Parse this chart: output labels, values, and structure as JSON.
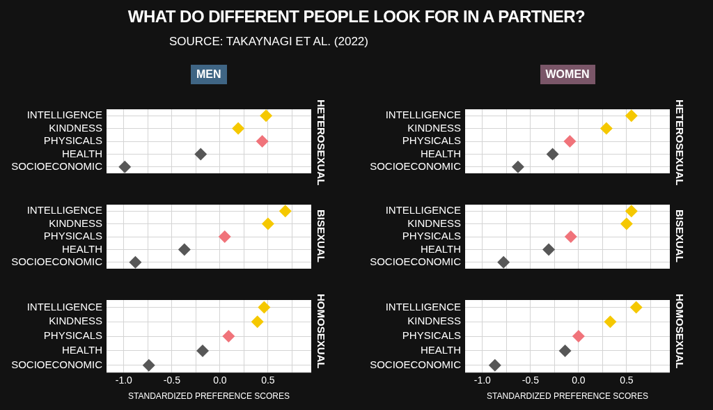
{
  "chart_data": [
    {
      "type": "scatter",
      "orientation": "horizontal",
      "title": "WHAT DO DIFFERENT PEOPLE LOOK FOR IN A PARTNER?",
      "subtitle": "SOURCE: TAKAYNAGI ET AL. (2022)",
      "annotations": [
        "MEN"
      ],
      "y2label": "HETEROSEXUAL",
      "categories": [
        "INTELLIGENCE",
        "KINDNESS",
        "PHYSICALS",
        "HEALTH",
        "SOCIOECONOMIC"
      ],
      "values": [
        0.48,
        0.19,
        0.44,
        -0.2,
        -0.99
      ],
      "colors": [
        "#f5c800",
        "#f5c800",
        "#f0737a",
        "#575757",
        "#575757"
      ],
      "marker": "diamond",
      "grid": true,
      "tick_labels": "y",
      "xlim": [
        -1.18,
        0.95
      ],
      "xticks": [
        {
          "value": -1,
          "label": null
        },
        {
          "value": -0.75,
          "label": null
        },
        {
          "value": -0.5,
          "label": null
        },
        {
          "value": -0.25,
          "label": null
        },
        {
          "value": 0,
          "label": null
        },
        {
          "value": 0.25,
          "label": null
        },
        {
          "value": 0.5,
          "label": null
        },
        {
          "value": 0.75,
          "label": null
        }
      ]
    },
    {
      "type": "scatter",
      "orientation": "horizontal",
      "annotations": [
        "WOMEN"
      ],
      "y2label": "HETEROSEXUAL",
      "categories": [
        "INTELLIGENCE",
        "KINDNESS",
        "PHYSICALS",
        "HEALTH",
        "SOCIOECONOMIC"
      ],
      "values": [
        0.55,
        0.29,
        -0.09,
        -0.27,
        -0.63
      ],
      "colors": [
        "#f5c800",
        "#f5c800",
        "#f0737a",
        "#575757",
        "#575757"
      ],
      "marker": "diamond",
      "grid": true,
      "tick_labels": "y",
      "xlim": [
        -1.18,
        0.95
      ],
      "xticks": [
        {
          "value": -1,
          "label": null
        },
        {
          "value": -0.75,
          "label": null
        },
        {
          "value": -0.5,
          "label": null
        },
        {
          "value": -0.25,
          "label": null
        },
        {
          "value": 0,
          "label": null
        },
        {
          "value": 0.25,
          "label": null
        },
        {
          "value": 0.5,
          "label": null
        },
        {
          "value": 0.75,
          "label": null
        }
      ]
    },
    {
      "type": "scatter",
      "orientation": "horizontal",
      "y2label": "BISEXUAL",
      "categories": [
        "INTELLIGENCE",
        "KINDNESS",
        "PHYSICALS",
        "HEALTH",
        "SOCIOECONOMIC"
      ],
      "values": [
        0.68,
        0.5,
        0.05,
        -0.37,
        -0.88
      ],
      "colors": [
        "#f5c800",
        "#f5c800",
        "#f0737a",
        "#575757",
        "#575757"
      ],
      "marker": "diamond",
      "grid": true,
      "tick_labels": "y",
      "xlim": [
        -1.18,
        0.95
      ],
      "xticks": [
        {
          "value": -1,
          "label": null
        },
        {
          "value": -0.75,
          "label": null
        },
        {
          "value": -0.5,
          "label": null
        },
        {
          "value": -0.25,
          "label": null
        },
        {
          "value": 0,
          "label": null
        },
        {
          "value": 0.25,
          "label": null
        },
        {
          "value": 0.5,
          "label": null
        },
        {
          "value": 0.75,
          "label": null
        }
      ]
    },
    {
      "type": "scatter",
      "orientation": "horizontal",
      "y2label": "BISEXUAL",
      "categories": [
        "INTELLIGENCE",
        "KINDNESS",
        "PHYSICALS",
        "HEALTH",
        "SOCIOECONOMIC"
      ],
      "values": [
        0.55,
        0.5,
        -0.08,
        -0.31,
        -0.78
      ],
      "colors": [
        "#f5c800",
        "#f5c800",
        "#f0737a",
        "#575757",
        "#575757"
      ],
      "marker": "diamond",
      "grid": true,
      "tick_labels": "y",
      "xlim": [
        -1.18,
        0.95
      ],
      "xticks": [
        {
          "value": -1,
          "label": null
        },
        {
          "value": -0.75,
          "label": null
        },
        {
          "value": -0.5,
          "label": null
        },
        {
          "value": -0.25,
          "label": null
        },
        {
          "value": 0,
          "label": null
        },
        {
          "value": 0.25,
          "label": null
        },
        {
          "value": 0.5,
          "label": null
        },
        {
          "value": 0.75,
          "label": null
        }
      ]
    },
    {
      "type": "scatter",
      "orientation": "horizontal",
      "y2label": "HOMOSEXUAL",
      "xlabel": "STANDARDIZED PREFERENCE SCORES",
      "categories": [
        "INTELLIGENCE",
        "KINDNESS",
        "PHYSICALS",
        "HEALTH",
        "SOCIOECONOMIC"
      ],
      "values": [
        0.46,
        0.39,
        0.09,
        -0.18,
        -0.74
      ],
      "colors": [
        "#f5c800",
        "#f5c800",
        "#f0737a",
        "#575757",
        "#575757"
      ],
      "marker": "diamond",
      "grid": true,
      "xlim": [
        -1.18,
        0.95
      ],
      "xticks": [
        {
          "value": -1,
          "label": "-1.0"
        },
        {
          "value": -0.75,
          "label": null
        },
        {
          "value": -0.5,
          "label": "-0.5"
        },
        {
          "value": -0.25,
          "label": null
        },
        {
          "value": 0,
          "label": "0.0"
        },
        {
          "value": 0.25,
          "label": null
        },
        {
          "value": 0.5,
          "label": "0.5"
        },
        {
          "value": 0.75,
          "label": null
        }
      ]
    },
    {
      "type": "scatter",
      "orientation": "horizontal",
      "y2label": "HOMOSEXUAL",
      "xlabel": "STANDARDIZED PREFERENCE SCORES",
      "categories": [
        "INTELLIGENCE",
        "KINDNESS",
        "PHYSICALS",
        "HEALTH",
        "SOCIOECONOMIC"
      ],
      "values": [
        0.6,
        0.33,
        0.0,
        -0.14,
        -0.87
      ],
      "colors": [
        "#f5c800",
        "#f5c800",
        "#f0737a",
        "#575757",
        "#575757"
      ],
      "marker": "diamond",
      "grid": true,
      "xlim": [
        -1.18,
        0.95
      ],
      "xticks": [
        {
          "value": -1,
          "label": "-1.0"
        },
        {
          "value": -0.75,
          "label": null
        },
        {
          "value": -0.5,
          "label": "-0.5"
        },
        {
          "value": -0.25,
          "label": null
        },
        {
          "value": 0,
          "label": "0.0"
        },
        {
          "value": 0.25,
          "label": null
        },
        {
          "value": 0.5,
          "label": "0.5"
        },
        {
          "value": 0.75,
          "label": null
        }
      ]
    }
  ]
}
